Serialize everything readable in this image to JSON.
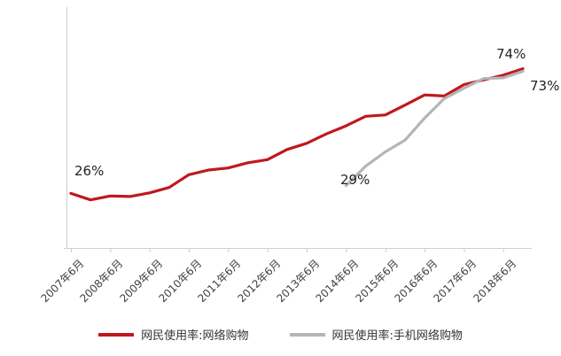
{
  "chart_data": {
    "type": "line",
    "title": "",
    "xlabel": "",
    "ylabel": "",
    "x_unit": "half-year (6月 and 12月 of each year)",
    "categories": [
      "2007年6月",
      "2008年6月",
      "2009年6月",
      "2010年6月",
      "2011年6月",
      "2012年6月",
      "2013年6月",
      "2014年6月",
      "2015年6月",
      "2016年6月",
      "2017年6月",
      "2018年6月"
    ],
    "points_per_category": 2,
    "total_points": 24,
    "ylim": [
      5,
      80
    ],
    "grid": false,
    "legend_position": "bottom",
    "axis_color": "#cfcfcf",
    "series": [
      {
        "name": "网民使用率:网络购物",
        "color": "#c0181e",
        "start_index": 0,
        "values": [
          26,
          23.5,
          25,
          24.8,
          26.2,
          28.3,
          33.2,
          35,
          35.8,
          37.8,
          39,
          42.9,
          45.3,
          48.9,
          52,
          55.7,
          56.2,
          60,
          63.9,
          63.5,
          67.9,
          69.7,
          71.5,
          74
        ]
      },
      {
        "name": "网民使用率:手机网络购物",
        "color": "#b5b5b5",
        "start_index": 14,
        "values": [
          29,
          36.5,
          42,
          46.5,
          55,
          62.5,
          66.5,
          70.2,
          70.5,
          73
        ]
      }
    ],
    "annotations": [
      {
        "text": "26%",
        "series": "网民使用率:网络购物",
        "x": "2007年6月",
        "value": 26
      },
      {
        "text": "29%",
        "series": "网民使用率:手机网络购物",
        "x": "2014年6月",
        "value": 29
      },
      {
        "text": "74%",
        "series": "网民使用率:网络购物",
        "x": "2018年12月",
        "value": 74
      },
      {
        "text": "73%",
        "series": "网民使用率:手机网络购物",
        "x": "2018年12月",
        "value": 73
      }
    ]
  },
  "legend": {
    "items": [
      {
        "label": "网民使用率:网络购物",
        "color": "#c0181e"
      },
      {
        "label": "网民使用率:手机网络购物",
        "color": "#b5b5b5"
      }
    ]
  }
}
